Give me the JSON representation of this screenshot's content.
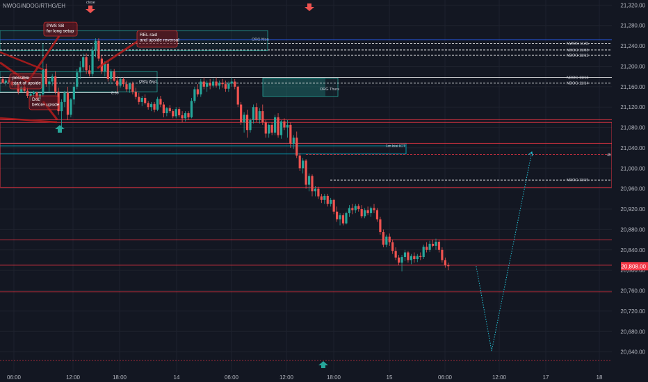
{
  "symbol": "NWOG/NDOG/RTHG/EH",
  "chart_data": {
    "type": "candlestick",
    "title": "NWOG/NDOG/RTHG/EH",
    "y_axis": {
      "ylim": [
        20600,
        21330
      ],
      "ticks": [
        "21,320.00",
        "21,280.00",
        "21,240.00",
        "21,200.00",
        "21,160.00",
        "21,120.00",
        "21,080.00",
        "21,040.00",
        "21,000.00",
        "20,960.00",
        "20,920.00",
        "20,880.00",
        "20,840.00",
        "20,800.00",
        "20,760.00",
        "20,720.00",
        "20,680.00",
        "20,640.00"
      ],
      "current_price": "20,808.00",
      "current_price_value": 20808
    },
    "x_axis": {
      "ticks": [
        "06:00",
        "12:00",
        "18:00",
        "14",
        "06:00",
        "12:00",
        "18:00",
        "15",
        "06:00",
        "12:00",
        "17",
        "18"
      ]
    },
    "candles": [
      [
        21175,
        21180,
        21166,
        21168
      ],
      [
        21168,
        21175,
        21162,
        21172
      ],
      [
        21172,
        21178,
        21168,
        21170
      ],
      [
        21170,
        21172,
        21160,
        21163
      ],
      [
        21163,
        21170,
        21158,
        21165
      ],
      [
        21165,
        21168,
        21145,
        21150
      ],
      [
        21150,
        21162,
        21148,
        21160
      ],
      [
        21160,
        21165,
        21148,
        21152
      ],
      [
        21152,
        21158,
        21138,
        21142
      ],
      [
        21142,
        21150,
        21132,
        21146
      ],
      [
        21146,
        21152,
        21140,
        21149
      ],
      [
        21149,
        21150,
        21132,
        21135
      ],
      [
        21135,
        21148,
        21128,
        21145
      ],
      [
        21145,
        21245,
        21140,
        21195
      ],
      [
        21195,
        21205,
        21160,
        21165
      ],
      [
        21165,
        21178,
        21150,
        21170
      ],
      [
        21170,
        21185,
        21162,
        21180
      ],
      [
        21180,
        21190,
        21145,
        21150
      ],
      [
        21150,
        21158,
        21105,
        21112
      ],
      [
        21112,
        21135,
        21078,
        21130
      ],
      [
        21130,
        21152,
        21120,
        21148
      ],
      [
        21148,
        21160,
        21095,
        21105
      ],
      [
        21105,
        21138,
        21100,
        21135
      ],
      [
        21135,
        21165,
        21125,
        21160
      ],
      [
        21160,
        21195,
        21155,
        21188
      ],
      [
        21188,
        21210,
        21175,
        21198
      ],
      [
        21198,
        21225,
        21190,
        21218
      ],
      [
        21218,
        21225,
        21185,
        21192
      ],
      [
        21192,
        21202,
        21180,
        21185
      ],
      [
        21185,
        21238,
        21180,
        21232
      ],
      [
        21232,
        21255,
        21218,
        21250
      ],
      [
        21250,
        21255,
        21210,
        21215
      ],
      [
        21215,
        21222,
        21185,
        21190
      ],
      [
        21190,
        21210,
        21180,
        21205
      ],
      [
        21205,
        21210,
        21170,
        21175
      ],
      [
        21175,
        21195,
        21165,
        21190
      ],
      [
        21190,
        21195,
        21170,
        21172
      ],
      [
        21172,
        21180,
        21150,
        21162
      ],
      [
        21162,
        21178,
        21158,
        21175
      ],
      [
        21175,
        21178,
        21160,
        21165
      ],
      [
        21165,
        21172,
        21150,
        21155
      ],
      [
        21155,
        21168,
        21148,
        21166
      ],
      [
        21166,
        21170,
        21145,
        21150
      ],
      [
        21150,
        21158,
        21135,
        21140
      ],
      [
        21140,
        21148,
        21125,
        21130
      ],
      [
        21130,
        21142,
        21122,
        21138
      ],
      [
        21138,
        21145,
        21125,
        21128
      ],
      [
        21128,
        21132,
        21115,
        21120
      ],
      [
        21120,
        21130,
        21112,
        21126
      ],
      [
        21126,
        21130,
        21110,
        21115
      ],
      [
        21115,
        21140,
        21112,
        21136
      ],
      [
        21136,
        21142,
        21120,
        21125
      ],
      [
        21125,
        21130,
        21100,
        21108
      ],
      [
        21108,
        21120,
        21102,
        21118
      ],
      [
        21118,
        21124,
        21108,
        21112
      ],
      [
        21112,
        21116,
        21098,
        21102
      ],
      [
        21102,
        21120,
        21098,
        21116
      ],
      [
        21116,
        21120,
        21100,
        21104
      ],
      [
        21104,
        21112,
        21090,
        21098
      ],
      [
        21098,
        21112,
        21092,
        21108
      ],
      [
        21108,
        21112,
        21095,
        21100
      ],
      [
        21100,
        21138,
        21098,
        21132
      ],
      [
        21132,
        21160,
        21128,
        21155
      ],
      [
        21155,
        21165,
        21140,
        21145
      ],
      [
        21145,
        21175,
        21140,
        21170
      ],
      [
        21170,
        21178,
        21155,
        21160
      ],
      [
        21160,
        21172,
        21150,
        21168
      ],
      [
        21168,
        21175,
        21155,
        21162
      ],
      [
        21162,
        21176,
        21158,
        21170
      ],
      [
        21170,
        21178,
        21158,
        21162
      ],
      [
        21162,
        21172,
        21155,
        21168
      ],
      [
        21168,
        21175,
        21158,
        21165
      ],
      [
        21165,
        21172,
        21150,
        21156
      ],
      [
        21156,
        21170,
        21150,
        21166
      ],
      [
        21166,
        21178,
        21160,
        21170
      ],
      [
        21170,
        21175,
        21155,
        21160
      ],
      [
        21160,
        21162,
        21120,
        21125
      ],
      [
        21125,
        21130,
        21085,
        21090
      ],
      [
        21090,
        21110,
        21070,
        21105
      ],
      [
        21105,
        21115,
        21060,
        21075
      ],
      [
        21075,
        21098,
        21070,
        21095
      ],
      [
        21095,
        21125,
        21088,
        21120
      ],
      [
        21120,
        21128,
        21090,
        21095
      ],
      [
        21095,
        21118,
        21088,
        21112
      ],
      [
        21112,
        21125,
        21085,
        21090
      ],
      [
        21090,
        21095,
        21060,
        21068
      ],
      [
        21068,
        21088,
        21060,
        21085
      ],
      [
        21085,
        21090,
        21065,
        21070
      ],
      [
        21070,
        21105,
        21065,
        21100
      ],
      [
        21100,
        21108,
        21060,
        21065
      ],
      [
        21065,
        21095,
        21058,
        21092
      ],
      [
        21092,
        21098,
        21075,
        21080
      ],
      [
        21080,
        21095,
        21060,
        21085
      ],
      [
        21085,
        21090,
        21040,
        21048
      ],
      [
        21048,
        21065,
        21038,
        21060
      ],
      [
        21060,
        21072,
        21020,
        21025
      ],
      [
        21025,
        21030,
        20995,
        21000
      ],
      [
        21000,
        21020,
        20990,
        21015
      ],
      [
        21015,
        21018,
        20960,
        20968
      ],
      [
        20968,
        20990,
        20955,
        20985
      ],
      [
        20985,
        20988,
        20945,
        20955
      ],
      [
        20955,
        20965,
        20945,
        20960
      ],
      [
        20960,
        20964,
        20940,
        20945
      ],
      [
        20945,
        20950,
        20932,
        20938
      ],
      [
        20938,
        20950,
        20930,
        20946
      ],
      [
        20946,
        20950,
        20925,
        20930
      ],
      [
        20930,
        20942,
        20925,
        20938
      ],
      [
        20938,
        20940,
        20910,
        20915
      ],
      [
        20915,
        20925,
        20895,
        20900
      ],
      [
        20900,
        20912,
        20888,
        20908
      ],
      [
        20908,
        20912,
        20888,
        20892
      ],
      [
        20892,
        20915,
        20890,
        20912
      ],
      [
        20912,
        20928,
        20905,
        20922
      ],
      [
        20922,
        20930,
        20910,
        20918
      ],
      [
        20918,
        20930,
        20912,
        20926
      ],
      [
        20926,
        20930,
        20915,
        20920
      ],
      [
        20920,
        20928,
        20902,
        20906
      ],
      [
        20906,
        20922,
        20902,
        20918
      ],
      [
        20918,
        20925,
        20908,
        20912
      ],
      [
        20912,
        20925,
        20905,
        20922
      ],
      [
        20922,
        20930,
        20912,
        20918
      ],
      [
        20918,
        20922,
        20895,
        20900
      ],
      [
        20900,
        20905,
        20870,
        20875
      ],
      [
        20875,
        20880,
        20845,
        20850
      ],
      [
        20850,
        20870,
        20845,
        20866
      ],
      [
        20866,
        20872,
        20848,
        20855
      ],
      [
        20855,
        20860,
        20832,
        20838
      ],
      [
        20838,
        20845,
        20820,
        20825
      ],
      [
        20825,
        20830,
        20810,
        20815
      ],
      [
        20815,
        20830,
        20798,
        20826
      ],
      [
        20826,
        20840,
        20818,
        20835
      ],
      [
        20835,
        20838,
        20815,
        20820
      ],
      [
        20820,
        20832,
        20812,
        20828
      ],
      [
        20828,
        20835,
        20815,
        20822
      ],
      [
        20822,
        20832,
        20816,
        20828
      ],
      [
        20828,
        20835,
        20820,
        20826
      ],
      [
        20826,
        20850,
        20822,
        20846
      ],
      [
        20846,
        20855,
        20835,
        20840
      ],
      [
        20840,
        20858,
        20836,
        20852
      ],
      [
        20852,
        20860,
        20845,
        20848
      ],
      [
        20848,
        20862,
        20840,
        20856
      ],
      [
        20856,
        20860,
        20835,
        20840
      ],
      [
        20840,
        20845,
        20815,
        20820
      ],
      [
        20820,
        20825,
        20805,
        20810
      ],
      [
        20810,
        20815,
        20800,
        20808
      ]
    ],
    "projection": [
      [
        153,
        20808
      ],
      [
        158,
        20642
      ],
      [
        171,
        21032
      ]
    ],
    "levels": [
      {
        "label": "NWOG 11/11",
        "price": 21245,
        "color": "#ffffff"
      },
      {
        "label": "NDOG 11/08",
        "price": 21232,
        "color": "#ffffff"
      },
      {
        "label": "NDOG 11/12",
        "price": 21222,
        "color": "#ffffff"
      },
      {
        "label": "NDOG 11/13",
        "price": 21178,
        "color": "#ffffff"
      },
      {
        "label": "NDOG 11/14",
        "price": 21167,
        "color": "#ffffff"
      },
      {
        "label": "NDOG 11/15",
        "price": 20977,
        "color": "#ffffff"
      },
      {
        "label": "8:30",
        "price": 21148,
        "color": "#ffffff"
      },
      {
        "label": "1m bisi ICT",
        "price": 21044,
        "color": "#00bcd4"
      },
      {
        "label": "4h bisi",
        "price": 21027,
        "color": "#f23645"
      }
    ],
    "zones": [
      {
        "label": "ORG Mon",
        "color": "#26a69a"
      },
      {
        "label": "ORG Wed",
        "color": "#26a69a"
      },
      {
        "label": "ORG Thurs",
        "color": "#26a69a"
      }
    ],
    "annotations": [
      {
        "text": "close",
        "type": "arrow-down"
      },
      {
        "text": "PWS SB\nfor long setup",
        "type": "note"
      },
      {
        "text": "REL raid\nand upside reversal",
        "type": "note"
      },
      {
        "text": "possible\nstart of upside",
        "type": "note"
      },
      {
        "text": "DoL\nbefore upside",
        "type": "note"
      }
    ],
    "legend": "none",
    "grid": true
  },
  "colors": {
    "background": "#131722",
    "up": "#26a69a",
    "down": "#ef5350",
    "grid": "#1e222d",
    "red_level": "#f23645",
    "blue_level": "#2962ff",
    "price_tag": "#f23645"
  }
}
